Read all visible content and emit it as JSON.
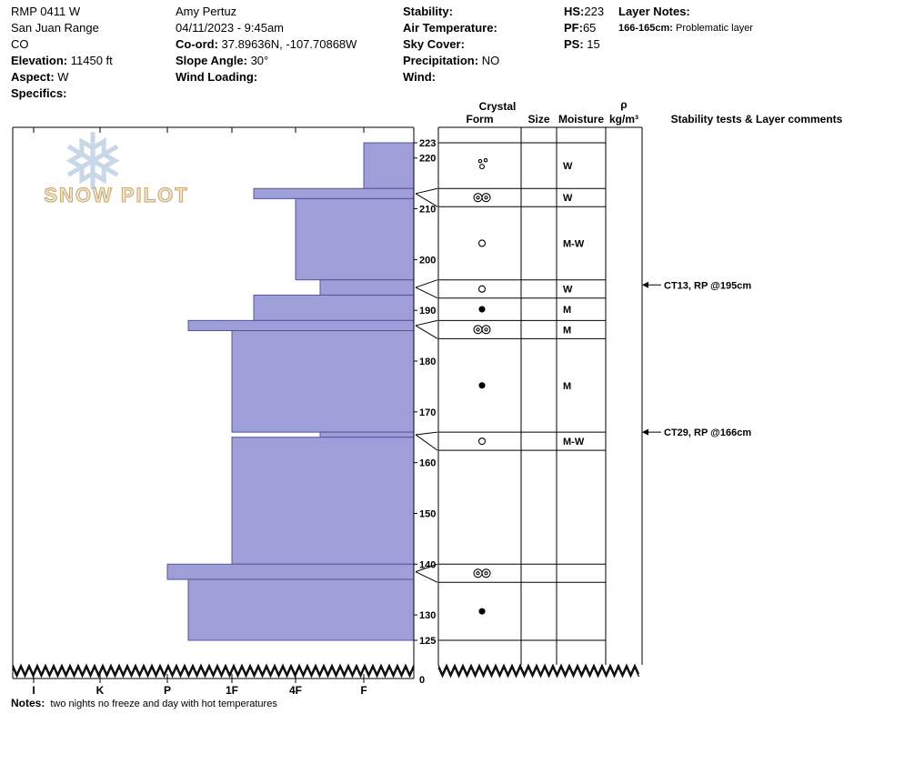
{
  "header": {
    "col1": {
      "pit_name": "RMP 0411 W",
      "range": "San Juan Range",
      "state": "CO",
      "elevation_label": "Elevation:",
      "elevation_value": " 11450 ft",
      "aspect_label": "Aspect:",
      "aspect_value": " W",
      "specifics_label": "Specifics:"
    },
    "col2": {
      "observer": "Amy Pertuz",
      "datetime": "04/11/2023 - 9:45am",
      "coord_label": "Co-ord:",
      "coord_value": " 37.89636N, -107.70868W",
      "slope_label": "Slope Angle:",
      "slope_value": " 30°",
      "wind_loading_label": "Wind Loading:"
    },
    "col3": {
      "stability_label": "Stability:",
      "air_temp_label": "Air Temperature:",
      "sky_cover_label": "Sky Cover:",
      "precip_label": "Precipitation:",
      "precip_value": " NO",
      "wind_label": "Wind:"
    },
    "col4": {
      "hs_label": "HS:",
      "hs_value": "223",
      "pf_label": "PF:",
      "pf_value": "65",
      "ps_label": "PS:",
      "ps_value": " 15"
    },
    "col5": {
      "layer_notes_label": "Layer Notes:",
      "note_range": "166-165cm:",
      "note_text": " Problematic layer"
    }
  },
  "watermark": {
    "text": "SNOW PILOT"
  },
  "chart_data": {
    "type": "snow-profile-bar",
    "surface_cm": 223,
    "bottom_cm": 125,
    "hardness_scale": [
      "I",
      "K",
      "P",
      "1F",
      "4F",
      "F"
    ],
    "depth_ticks": [
      223,
      220,
      210,
      200,
      190,
      180,
      170,
      160,
      150,
      140,
      130,
      125
    ],
    "depth_zero": "0",
    "bar_color": "#9e9ed8",
    "bar_border": "#55559a",
    "column_headers": {
      "crystal": "Crystal",
      "form": "Form",
      "size": "Size",
      "moisture": "Moisture",
      "density_rho": "ρ",
      "density_units": "kg/m³",
      "comments": "Stability tests & Layer comments"
    },
    "layers": [
      {
        "top_cm": 223,
        "bottom_cm": 214,
        "hardness": "F",
        "grain_form": "precip-particles",
        "moisture": "W"
      },
      {
        "top_cm": 214,
        "bottom_cm": 212,
        "hardness": "1F-4F",
        "grain_form": "melt-cluster",
        "moisture": "W"
      },
      {
        "top_cm": 212,
        "bottom_cm": 196,
        "hardness": "4F",
        "grain_form": "round",
        "moisture": "M-W"
      },
      {
        "top_cm": 196,
        "bottom_cm": 193,
        "hardness": "4F-F",
        "grain_form": "round",
        "moisture": "W"
      },
      {
        "top_cm": 193,
        "bottom_cm": 188,
        "hardness": "1F-4F",
        "grain_form": "dark-round",
        "moisture": "M"
      },
      {
        "top_cm": 188,
        "bottom_cm": 186,
        "hardness": "P-1F",
        "grain_form": "melt-cluster",
        "moisture": "M"
      },
      {
        "top_cm": 186,
        "bottom_cm": 166,
        "hardness": "1F",
        "grain_form": "dark-round",
        "moisture": "M"
      },
      {
        "top_cm": 166,
        "bottom_cm": 165,
        "hardness": "4F-F",
        "grain_form": "round",
        "moisture": "M-W"
      },
      {
        "top_cm": 165,
        "bottom_cm": 140,
        "hardness": "1F",
        "grain_form": "",
        "moisture": ""
      },
      {
        "top_cm": 140,
        "bottom_cm": 137,
        "hardness": "P",
        "grain_form": "melt-cluster",
        "moisture": ""
      },
      {
        "top_cm": 137,
        "bottom_cm": 125,
        "hardness": "P-1F",
        "grain_form": "dark-round",
        "moisture": ""
      }
    ],
    "stability_tests": [
      {
        "depth_cm": 195,
        "label": "CT13, RP @195cm"
      },
      {
        "depth_cm": 166,
        "label": "CT29, RP @166cm"
      }
    ]
  },
  "notes": {
    "label": "Notes:",
    "text": "two nights no freeze and day with hot temperatures"
  }
}
